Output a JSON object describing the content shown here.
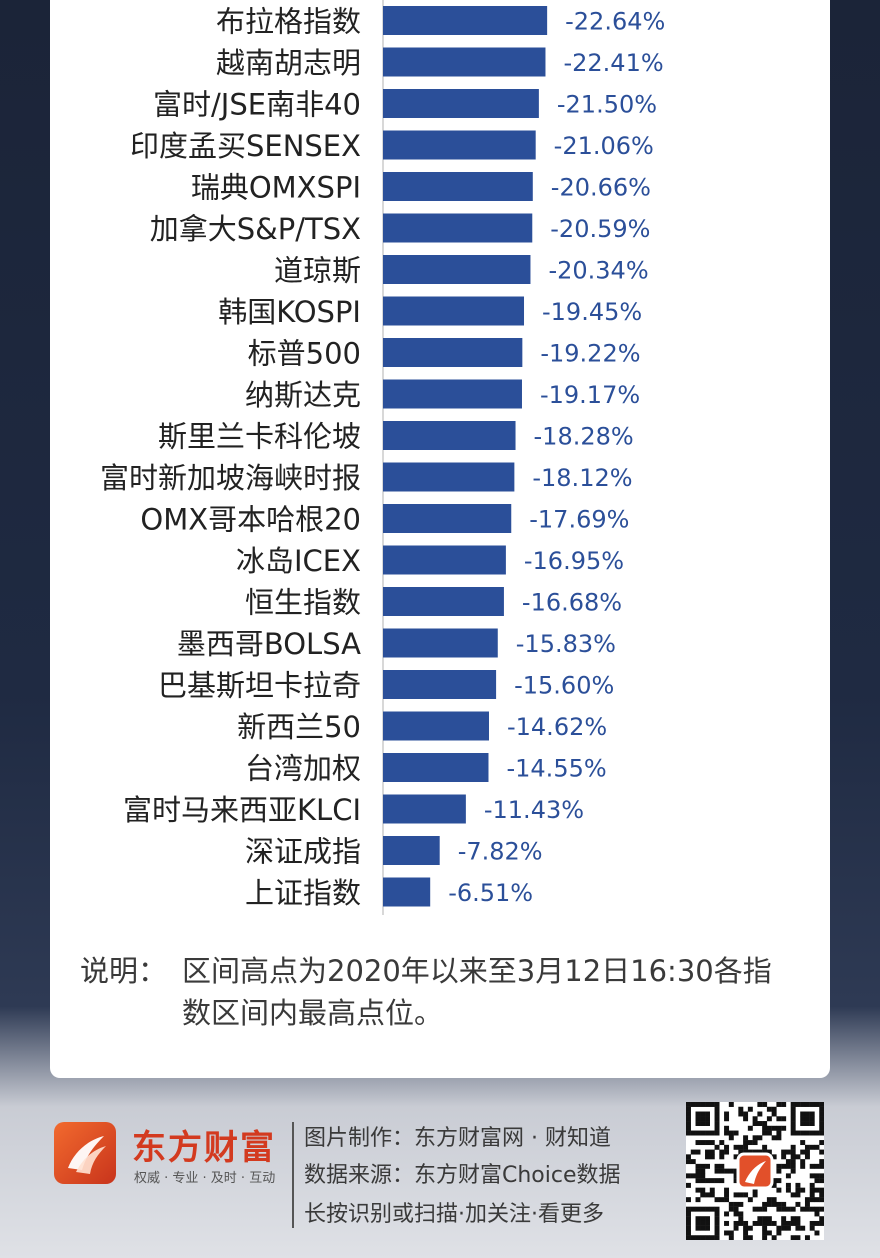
{
  "chart_data": {
    "type": "bar",
    "orientation": "horizontal",
    "categories": [
      "布拉格指数",
      "越南胡志明",
      "富时/JSE南非40",
      "印度孟买SENSEX",
      "瑞典OMXSPI",
      "加拿大S&P/TSX",
      "道琼斯",
      "韩国KOSPI",
      "标普500",
      "纳斯达克",
      "斯里兰卡科伦坡",
      "富时新加坡海峡时报",
      "OMX哥本哈根20",
      "冰岛ICEX",
      "恒生指数",
      "墨西哥BOLSA",
      "巴基斯坦卡拉奇",
      "新西兰50",
      "台湾加权",
      "富时马来西亚KLCI",
      "深证成指",
      "上证指数"
    ],
    "values": [
      -22.64,
      -22.41,
      -21.5,
      -21.06,
      -20.66,
      -20.59,
      -20.34,
      -19.45,
      -19.22,
      -19.17,
      -18.28,
      -18.12,
      -17.69,
      -16.95,
      -16.68,
      -15.83,
      -15.6,
      -14.62,
      -14.55,
      -11.43,
      -7.82,
      -6.51
    ],
    "labels": [
      "-22.64%",
      "-22.41%",
      "-21.50%",
      "-21.06%",
      "-20.66%",
      "-20.59%",
      "-20.34%",
      "-19.45%",
      "-19.22%",
      "-19.17%",
      "-18.28%",
      "-18.12%",
      "-17.69%",
      "-16.95%",
      "-16.68%",
      "-15.83%",
      "-15.60%",
      "-14.62%",
      "-14.55%",
      "-11.43%",
      "-7.82%",
      "-6.51%"
    ],
    "bar_color": "#2b4f99",
    "label_color": "#2b4f99",
    "grid": false
  },
  "note": {
    "label": "说明：",
    "text": "区间高点为2020年以来至3月12日16:30各指数区间内最高点位。"
  },
  "footer": {
    "brand_name": "东方财富",
    "brand_slogan": "权威 · 专业 · 及时 · 互动",
    "credit_lines": [
      "图片制作：东方财富网 · 财知道",
      "数据来源：东方财富Choice数据",
      "长按识别或扫描·加关注·看更多"
    ],
    "brand_color": "#d33a1f"
  }
}
